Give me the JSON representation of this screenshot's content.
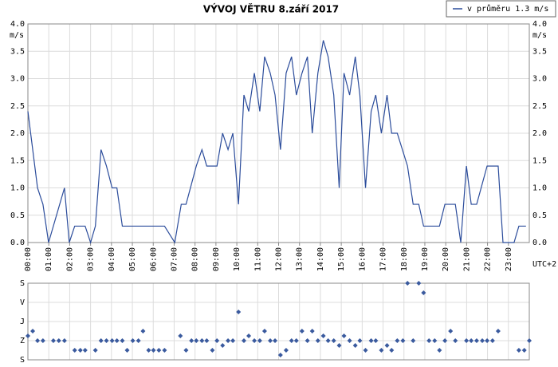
{
  "chart_data": [
    {
      "type": "line",
      "title": "VÝVOJ VĚTRU  8.září 2017",
      "y_label": "m/s",
      "x_label": "UTC+2",
      "xlim": [
        0,
        24
      ],
      "ylim": [
        0,
        4
      ],
      "xticks": [
        {
          "value": 0,
          "label": "00:00"
        },
        {
          "value": 1,
          "label": "01:00"
        },
        {
          "value": 2,
          "label": "02:00"
        },
        {
          "value": 3,
          "label": "03:00"
        },
        {
          "value": 4,
          "label": "04:00"
        },
        {
          "value": 5,
          "label": "05:00"
        },
        {
          "value": 6,
          "label": "06:00"
        },
        {
          "value": 7,
          "label": "07:00"
        },
        {
          "value": 8,
          "label": "08:00"
        },
        {
          "value": 9,
          "label": "09:00"
        },
        {
          "value": 10,
          "label": "10:00"
        },
        {
          "value": 11,
          "label": "11:00"
        },
        {
          "value": 12,
          "label": "12:00"
        },
        {
          "value": 13,
          "label": "13:00"
        },
        {
          "value": 14,
          "label": "14:00"
        },
        {
          "value": 15,
          "label": "15:00"
        },
        {
          "value": 16,
          "label": "16:00"
        },
        {
          "value": 17,
          "label": "17:00"
        },
        {
          "value": 18,
          "label": "18:00"
        },
        {
          "value": 19,
          "label": "19:00"
        },
        {
          "value": 20,
          "label": "20:00"
        },
        {
          "value": 21,
          "label": "21:00"
        },
        {
          "value": 22,
          "label": "22:00"
        },
        {
          "value": 23,
          "label": "23:00"
        }
      ],
      "yticks": [
        {
          "value": 0,
          "label": "0.0"
        },
        0.5,
        {
          "value": 1,
          "label": "1.0"
        },
        1.5,
        {
          "value": 2,
          "label": "2.0"
        },
        2.5,
        {
          "value": 3,
          "label": "3.0"
        },
        3.5,
        {
          "value": 4,
          "label": "4.0"
        }
      ],
      "grid": true,
      "legend": "top-right",
      "series": [
        {
          "name": "v průměru 1.3 m/s",
          "color": "#2b4c9b",
          "x": [
            0,
            0.46,
            0.72,
            0.99,
            1.75,
            1.98,
            2.24,
            2.74,
            3.0,
            3.23,
            3.5,
            3.76,
            4.03,
            4.26,
            4.52,
            6.54,
            7.03,
            7.34,
            7.57,
            8.06,
            8.33,
            8.56,
            9.05,
            9.32,
            9.58,
            9.81,
            10.08,
            10.34,
            10.57,
            10.84,
            11.1,
            11.33,
            11.6,
            11.83,
            12.09,
            12.36,
            12.62,
            12.85,
            13.12,
            13.38,
            13.61,
            13.88,
            14.14,
            14.37,
            14.64,
            14.9,
            15.13,
            15.4,
            15.67,
            15.89,
            16.16,
            16.43,
            16.65,
            16.92,
            17.19,
            17.41,
            17.68,
            18.17,
            18.44,
            18.71,
            18.94,
            19.7,
            19.96,
            20.46,
            20.72,
            20.99,
            21.22,
            21.48,
            21.98,
            22.51,
            22.74,
            23.27,
            23.5,
            23.84
          ],
          "values": [
            2.4,
            1.0,
            0.7,
            0.0,
            1.0,
            0.0,
            0.3,
            0.3,
            0.0,
            0.3,
            1.7,
            1.4,
            1.0,
            1.0,
            0.3,
            0.3,
            0.0,
            0.7,
            0.7,
            1.4,
            1.7,
            1.4,
            1.4,
            2.0,
            1.7,
            2.0,
            0.7,
            2.7,
            2.4,
            3.1,
            2.4,
            3.4,
            3.1,
            2.7,
            1.7,
            3.1,
            3.4,
            2.7,
            3.1,
            3.4,
            2.0,
            3.1,
            3.7,
            3.4,
            2.7,
            1.0,
            3.1,
            2.7,
            3.4,
            2.7,
            1.0,
            2.4,
            2.7,
            2.0,
            2.7,
            2.0,
            2.0,
            1.4,
            0.7,
            0.7,
            0.3,
            0.3,
            0.7,
            0.7,
            0.0,
            1.4,
            0.7,
            0.7,
            1.4,
            1.4,
            0.0,
            0.0,
            0.3,
            0.3
          ]
        }
      ]
    },
    {
      "type": "scatter",
      "xlim": [
        0,
        24
      ],
      "ylim": [
        360,
        0
      ],
      "yticks": [
        {
          "value": 0,
          "label": "S"
        },
        {
          "value": 90,
          "label": "V"
        },
        {
          "value": 180,
          "label": "J"
        },
        {
          "value": 270,
          "label": "Z"
        },
        {
          "value": 360,
          "label": "S"
        }
      ],
      "grid": true,
      "series": [
        {
          "color": "#3a5a9e",
          "x": [
            0,
            0.23,
            0.46,
            0.72,
            1.22,
            1.48,
            1.75,
            2.24,
            2.51,
            2.74,
            3.23,
            3.5,
            3.76,
            4.03,
            4.26,
            4.52,
            4.75,
            5.02,
            5.29,
            5.51,
            5.78,
            6.01,
            6.27,
            6.54,
            7.3,
            7.57,
            7.83,
            8.06,
            8.33,
            8.56,
            8.83,
            9.05,
            9.32,
            9.58,
            9.81,
            10.08,
            10.34,
            10.57,
            10.84,
            11.1,
            11.33,
            11.6,
            11.83,
            12.09,
            12.36,
            12.62,
            12.85,
            13.12,
            13.38,
            13.61,
            13.88,
            14.14,
            14.37,
            14.64,
            14.9,
            15.13,
            15.4,
            15.67,
            15.89,
            16.16,
            16.43,
            16.65,
            16.92,
            17.19,
            17.41,
            17.68,
            17.95,
            18.17,
            18.44,
            18.71,
            18.94,
            19.2,
            19.47,
            19.7,
            19.96,
            20.23,
            20.46,
            20.99,
            21.22,
            21.48,
            21.75,
            21.98,
            22.24,
            22.51,
            23.5,
            23.76,
            24.0
          ],
          "values": [
            247.5,
            225,
            270,
            270,
            270,
            270,
            270,
            315,
            315,
            315,
            315,
            270,
            270,
            270,
            270,
            270,
            315,
            270,
            270,
            225,
            315,
            315,
            315,
            315,
            247.5,
            315,
            270,
            270,
            270,
            270,
            315,
            270,
            292.5,
            270,
            270,
            135,
            270,
            247.5,
            270,
            270,
            225,
            270,
            270,
            337.5,
            315,
            270,
            270,
            225,
            270,
            225,
            270,
            247.5,
            270,
            270,
            292.5,
            247.5,
            270,
            292.5,
            270,
            315,
            270,
            270,
            315,
            292.5,
            315,
            270,
            270,
            0,
            270,
            0,
            45,
            270,
            270,
            315,
            270,
            225,
            270,
            270,
            270,
            270,
            270,
            270,
            270,
            225,
            315,
            315,
            270
          ]
        }
      ]
    }
  ]
}
